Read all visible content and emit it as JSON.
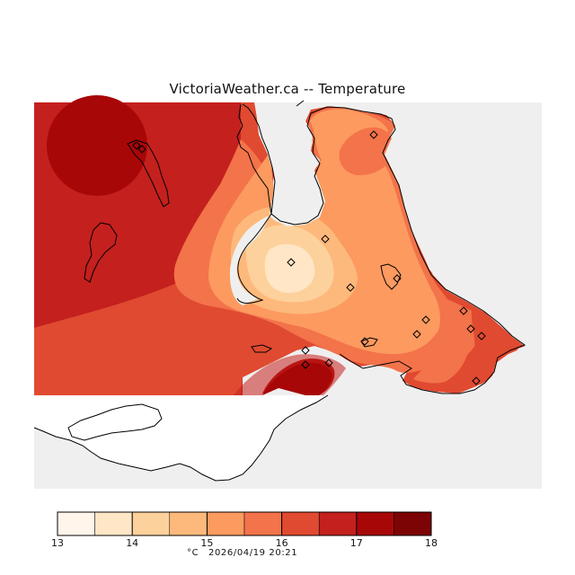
{
  "map": {
    "title": "VictoriaWeather.ca -- Temperature"
  },
  "legend": {
    "ticks": [
      "13",
      "14",
      "15",
      "16",
      "17",
      "18"
    ],
    "unit": "°C",
    "timestamp": "2026/04/19 20:21",
    "colors": [
      "#fff5ea",
      "#fee6c6",
      "#fdd19b",
      "#fdb97c",
      "#fc9a60",
      "#f3734a",
      "#e04a31",
      "#c4201e",
      "#a80708",
      "#7d0404"
    ]
  },
  "colors": {
    "water_background": "#efefef",
    "coastline": "#000000",
    "station_marker": "#000000"
  }
}
